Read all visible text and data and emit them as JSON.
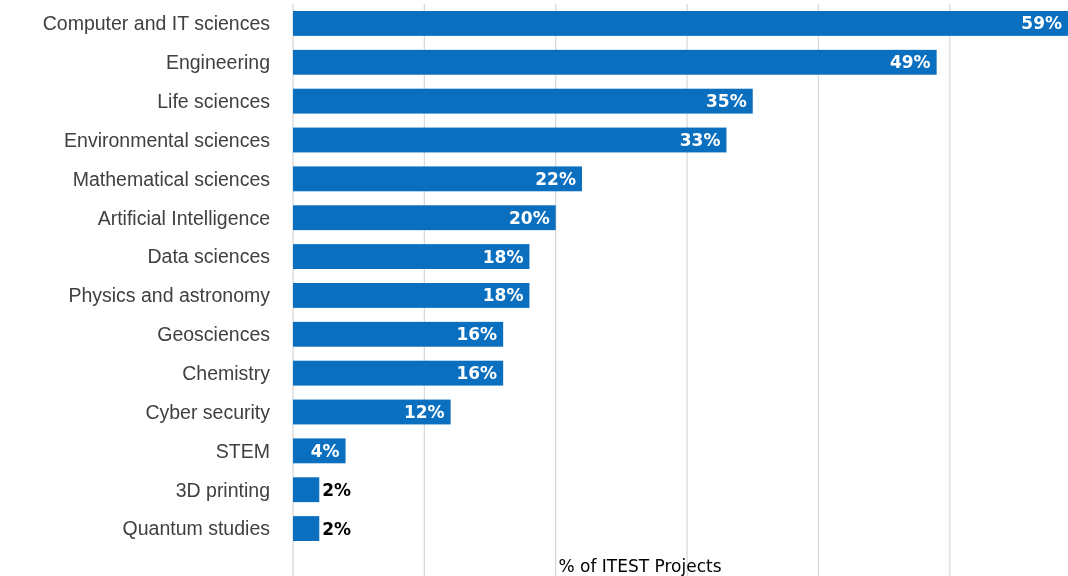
{
  "chart_data": {
    "type": "bar",
    "orientation": "horizontal",
    "xlabel": "% of ITEST Projects",
    "categories": [
      "Computer and IT sciences",
      "Engineering",
      "Life sciences",
      "Environmental sciences",
      "Mathematical sciences",
      "Artificial Intelligence",
      "Data sciences",
      "Physics and astronomy",
      "Geosciences",
      "Chemistry",
      "Cyber security",
      "STEM",
      "3D printing",
      "Quantum studies"
    ],
    "values": [
      59,
      49,
      35,
      33,
      22,
      20,
      18,
      18,
      16,
      16,
      12,
      4,
      2,
      2
    ],
    "value_labels": [
      "59%",
      "49%",
      "35%",
      "33%",
      "22%",
      "20%",
      "18%",
      "18%",
      "16%",
      "16%",
      "12%",
      "4%",
      "2%",
      "2%"
    ],
    "color": "#0b6fc0",
    "xlim": [
      0,
      59
    ],
    "xticks": [
      {
        "value": 0,
        "label": null
      },
      {
        "value": 10,
        "label": null
      },
      {
        "value": 20,
        "label": null
      },
      {
        "value": 30,
        "label": null
      },
      {
        "value": 40,
        "label": null
      },
      {
        "value": 50,
        "label": null
      }
    ],
    "tick_labels": "y",
    "grid": "x"
  }
}
